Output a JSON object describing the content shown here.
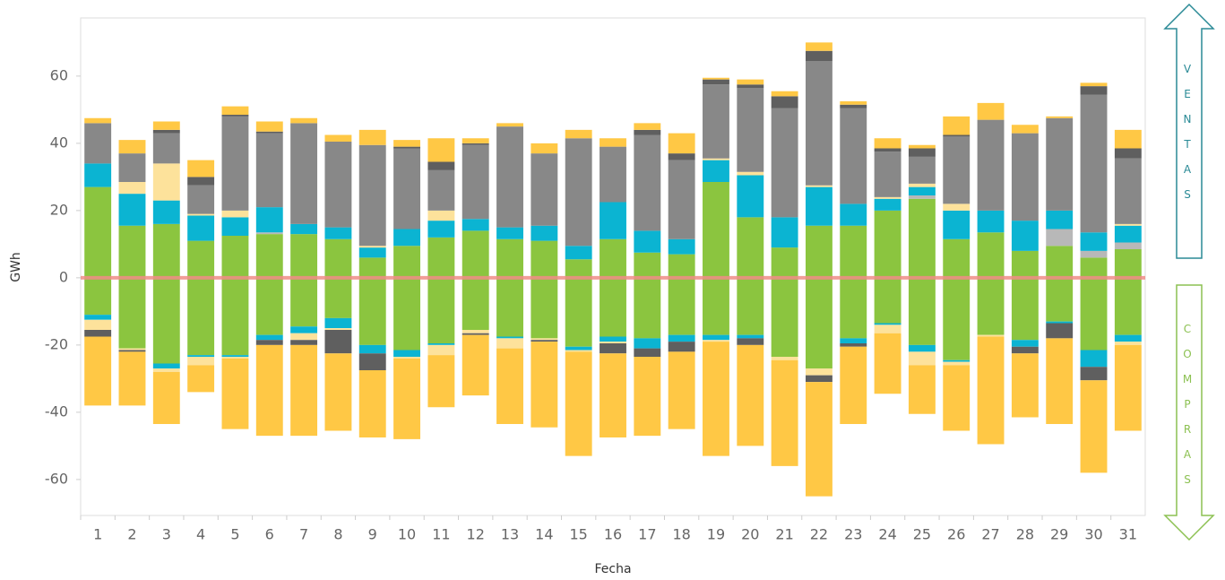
{
  "chart_data": {
    "type": "stacked_bar",
    "x_label": "Fecha",
    "y_label": "GWh",
    "categories": [
      "1",
      "2",
      "3",
      "4",
      "5",
      "6",
      "7",
      "8",
      "9",
      "10",
      "11",
      "12",
      "13",
      "14",
      "15",
      "16",
      "17",
      "18",
      "19",
      "20",
      "21",
      "22",
      "23",
      "24",
      "25",
      "26",
      "27",
      "28",
      "29",
      "30",
      "31"
    ],
    "series": [
      {
        "color": "#8bc53f",
        "values": [
          27,
          15.5,
          16,
          11,
          12.5,
          13,
          13,
          11.5,
          6,
          9.5,
          12,
          14,
          11.5,
          11,
          5.5,
          11.5,
          7.5,
          7,
          28.5,
          18,
          9,
          15.5,
          15.5,
          20,
          23.5,
          11.5,
          13.5,
          8,
          9.5,
          6,
          8.5
        ]
      },
      {
        "color": "#b8b8b8",
        "values": [
          0,
          0,
          0,
          0,
          0,
          0.5,
          0,
          0,
          0,
          0,
          0,
          0,
          0,
          0,
          0,
          0,
          0,
          0,
          0,
          0,
          0,
          0,
          0,
          0,
          1,
          0,
          0,
          0,
          5,
          2,
          2
        ]
      },
      {
        "color": "#0bb4d2",
        "values": [
          7,
          9.5,
          7,
          7.5,
          5.5,
          7.5,
          3,
          3.5,
          3,
          5,
          5,
          3.5,
          3.5,
          4.5,
          4,
          11,
          6.5,
          4.5,
          6.5,
          12.5,
          9,
          11.5,
          6.5,
          3.5,
          2.5,
          8.5,
          6.5,
          9,
          5.5,
          5.5,
          5
        ]
      },
      {
        "color": "#fde29b",
        "values": [
          0,
          3.5,
          11,
          0.5,
          2,
          0,
          0,
          0,
          0.5,
          0,
          3,
          0,
          0,
          0,
          0,
          0,
          0,
          0,
          0.5,
          1,
          0,
          0.5,
          0,
          0.5,
          1,
          2,
          0,
          0,
          0,
          0,
          0.5
        ]
      },
      {
        "color": "#888888",
        "values": [
          12,
          8.5,
          9,
          8.5,
          28,
          22,
          30,
          25.5,
          30,
          24,
          12,
          22,
          30,
          21.5,
          32,
          16.5,
          28.5,
          23.5,
          22,
          25,
          32.5,
          37,
          28.5,
          13.5,
          8,
          20,
          27,
          26,
          27.5,
          41,
          19.5
        ]
      },
      {
        "color": "#5f5f5f",
        "values": [
          0,
          0,
          1,
          2.5,
          0.5,
          0.5,
          0,
          0,
          0,
          0.5,
          2.5,
          0.5,
          0,
          0,
          0,
          0,
          1.5,
          2,
          1.5,
          1,
          3.5,
          3,
          1,
          1,
          2.5,
          0.5,
          0,
          0,
          0,
          2.5,
          3
        ]
      },
      {
        "color": "#ffc845",
        "values": [
          1.5,
          4,
          2.5,
          5,
          2.5,
          3,
          1.5,
          2,
          4.5,
          2,
          7,
          1.5,
          1,
          3,
          2.5,
          2.5,
          2,
          6,
          0.5,
          1.5,
          1.5,
          2.5,
          1,
          3,
          1,
          5.5,
          5,
          2.5,
          0.5,
          1,
          5.5
        ]
      },
      {
        "color": "#8bc53f",
        "values": [
          -11,
          -21,
          -25.5,
          -23,
          -23,
          -17,
          -14.5,
          -12,
          -20,
          -21.5,
          -19.5,
          -15.5,
          -17.5,
          -18,
          -20.5,
          -17.5,
          -18,
          -17,
          -17,
          -17,
          -23.5,
          -27,
          -18,
          -13.5,
          -20,
          -24.5,
          -17,
          -18.5,
          -13,
          -21.5,
          -17
        ]
      },
      {
        "color": "#0bb4d2",
        "values": [
          -1.5,
          0,
          -1.5,
          -0.5,
          -0.5,
          -1.5,
          -2,
          -3,
          -2.5,
          -2,
          -0.5,
          0,
          -0.5,
          0,
          -1,
          -1.5,
          -3,
          -2,
          -1.5,
          -1,
          0,
          0,
          -1.5,
          -0.5,
          -2,
          -0.5,
          0,
          -2,
          -0.5,
          -5,
          -2
        ]
      },
      {
        "color": "#fde29b",
        "values": [
          -3,
          -0.5,
          -1,
          -2.5,
          -0.5,
          0,
          -2,
          -0.5,
          0,
          -0.5,
          -3,
          -1,
          -3,
          -0.5,
          -0.5,
          -0.5,
          0,
          0,
          -0.5,
          0,
          -1,
          -2,
          0,
          -2.5,
          -4,
          -1,
          -0.5,
          0,
          0,
          0,
          -1
        ]
      },
      {
        "color": "#5f5f5f",
        "values": [
          -2,
          -0.5,
          0,
          0,
          0,
          -1.5,
          -1.5,
          -7,
          -5,
          0,
          0,
          -0.5,
          0,
          -0.5,
          0,
          -3,
          -2.5,
          -3,
          0,
          -2,
          0,
          -2,
          -1,
          0,
          0,
          0,
          0,
          -2,
          -4.5,
          -4,
          0
        ]
      },
      {
        "color": "#ffc845",
        "values": [
          -20.5,
          -16,
          -15.5,
          -8,
          -21,
          -27,
          -27,
          -23,
          -20,
          -24,
          -15.5,
          -18,
          -22.5,
          -25.5,
          -31,
          -25,
          -23.5,
          -23,
          -34,
          -30,
          -31.5,
          -34,
          -23,
          -18,
          -14.5,
          -19.5,
          -32,
          -19,
          -25.5,
          -27.5,
          -25.5
        ]
      }
    ],
    "ylim": [
      -70.7,
      77.3
    ],
    "yticks": [
      -60,
      -40,
      -20,
      0,
      20,
      40,
      60
    ],
    "reference_line": {
      "value": 0,
      "color": "#f08c86"
    }
  },
  "side_labels": {
    "sales": "VENTAS",
    "purchases": "COMPRAS"
  }
}
